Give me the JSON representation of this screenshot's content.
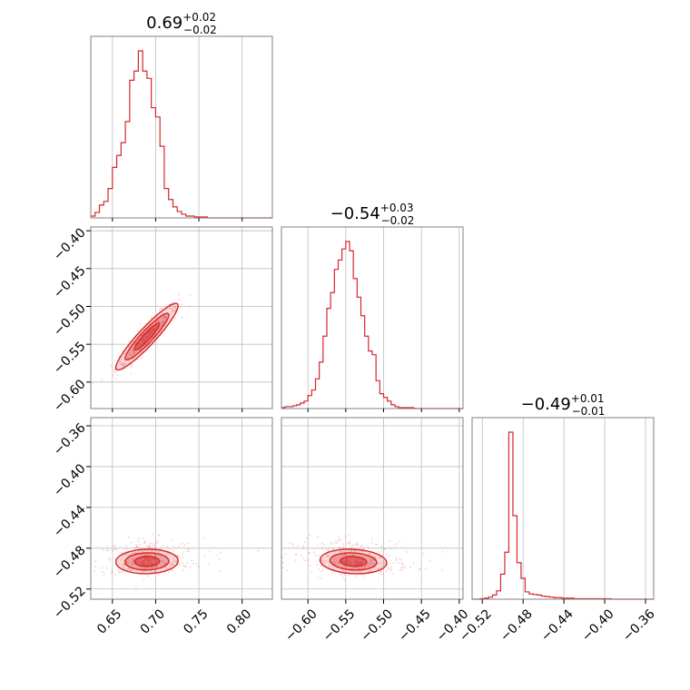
{
  "accent_color": "#d62728",
  "chart_data": {
    "type": "corner",
    "grid": true,
    "params": [
      {
        "title": {
          "value": "0.69",
          "upper": "+0.02",
          "lower": "−0.02"
        },
        "range": [
          0.625,
          0.835
        ],
        "ticks": [
          0.65,
          0.7,
          0.75,
          0.8
        ],
        "tick_labels": [
          "0.65",
          "0.70",
          "0.75",
          "0.80"
        ],
        "mean": 0.69,
        "sd": 0.018
      },
      {
        "title": {
          "value": "−0.54",
          "upper": "+0.03",
          "lower": "−0.02"
        },
        "range": [
          -0.635,
          -0.395
        ],
        "ticks": [
          -0.6,
          -0.55,
          -0.5,
          -0.45,
          -0.4
        ],
        "tick_labels": [
          "−0.60",
          "−0.55",
          "−0.50",
          "−0.45",
          "−0.40"
        ],
        "mean": -0.54,
        "sd": 0.022
      },
      {
        "title": {
          "value": "−0.49",
          "upper": "+0.01",
          "lower": "−0.01"
        },
        "range": [
          -0.53,
          -0.352
        ],
        "ticks": [
          -0.52,
          -0.48,
          -0.44,
          -0.4,
          -0.36
        ],
        "tick_labels": [
          "−0.52",
          "−0.48",
          "−0.44",
          "−0.40",
          "−0.36"
        ],
        "mean": -0.493,
        "sd": 0.006
      }
    ],
    "histograms": [
      {
        "param": 0,
        "bin_edges": [
          0.625,
          0.63,
          0.635,
          0.64,
          0.645,
          0.65,
          0.655,
          0.66,
          0.665,
          0.67,
          0.675,
          0.68,
          0.685,
          0.69,
          0.695,
          0.7,
          0.705,
          0.71,
          0.715,
          0.72,
          0.725,
          0.73,
          0.735,
          0.74,
          0.745,
          0.75,
          0.755,
          0.76,
          0.765,
          0.77,
          0.775,
          0.78,
          0.785,
          0.79,
          0.795,
          0.8,
          0.805,
          0.81,
          0.815,
          0.82,
          0.825,
          0.83,
          0.835
        ],
        "counts": [
          2,
          6,
          14,
          18,
          32,
          55,
          68,
          82,
          105,
          150,
          160,
          182,
          160,
          152,
          120,
          110,
          78,
          32,
          20,
          12,
          7,
          4,
          2,
          2,
          1,
          1,
          1,
          0,
          0,
          0,
          0,
          0,
          0,
          0,
          0,
          0,
          0,
          0,
          0,
          0,
          0,
          0
        ]
      },
      {
        "param": 1,
        "bin_edges": [
          -0.635,
          -0.63,
          -0.625,
          -0.62,
          -0.615,
          -0.61,
          -0.605,
          -0.6,
          -0.595,
          -0.59,
          -0.585,
          -0.58,
          -0.575,
          -0.57,
          -0.565,
          -0.56,
          -0.555,
          -0.55,
          -0.545,
          -0.54,
          -0.535,
          -0.53,
          -0.525,
          -0.52,
          -0.515,
          -0.51,
          -0.505,
          -0.5,
          -0.495,
          -0.49,
          -0.485,
          -0.48,
          -0.475,
          -0.47,
          -0.465,
          -0.46,
          -0.455,
          -0.45,
          -0.445,
          -0.44,
          -0.435,
          -0.43,
          -0.425,
          -0.42,
          -0.415,
          -0.41,
          -0.405,
          -0.4,
          -0.395
        ],
        "counts": [
          1,
          2,
          2,
          3,
          4,
          6,
          8,
          14,
          20,
          32,
          50,
          78,
          108,
          125,
          150,
          160,
          172,
          180,
          170,
          140,
          120,
          100,
          78,
          62,
          58,
          30,
          16,
          12,
          8,
          4,
          2,
          1,
          1,
          1,
          1,
          0,
          0,
          0,
          0,
          0,
          0,
          0,
          0,
          0,
          0,
          0,
          0,
          0
        ]
      },
      {
        "param": 2,
        "bin_edges": [
          -0.53,
          -0.526,
          -0.522,
          -0.518,
          -0.514,
          -0.51,
          -0.506,
          -0.502,
          -0.498,
          -0.494,
          -0.49,
          -0.486,
          -0.482,
          -0.478,
          -0.474,
          -0.47,
          -0.466,
          -0.462,
          -0.458,
          -0.454,
          -0.45,
          -0.446,
          -0.442,
          -0.438,
          -0.434,
          -0.43,
          -0.426,
          -0.422,
          -0.418,
          -0.414,
          -0.41,
          -0.406,
          -0.402,
          -0.398,
          -0.394,
          -0.39,
          -0.386,
          -0.382,
          -0.378,
          -0.374,
          -0.37,
          -0.366,
          -0.362,
          -0.358,
          -0.354,
          -0.352
        ],
        "counts": [
          0,
          0,
          1,
          2,
          4,
          8,
          16,
          48,
          90,
          320,
          160,
          70,
          40,
          14,
          10,
          9,
          8,
          6,
          5,
          4,
          3,
          3,
          2,
          2,
          2,
          1,
          1,
          1,
          1,
          1,
          1,
          1,
          1,
          1,
          0,
          0,
          0,
          0,
          0,
          0,
          0,
          0,
          0,
          0,
          0
        ]
      }
    ],
    "joint_2d": [
      {
        "x_param": 0,
        "y_param": 1,
        "correlation": 0.93,
        "levels": [
          0.39,
          0.86,
          1.0
        ]
      },
      {
        "x_param": 0,
        "y_param": 2,
        "correlation": 0.05,
        "levels": [
          0.39,
          0.86,
          1.0
        ]
      },
      {
        "x_param": 1,
        "y_param": 2,
        "correlation": -0.12,
        "levels": [
          0.39,
          0.86,
          1.0
        ]
      }
    ]
  }
}
